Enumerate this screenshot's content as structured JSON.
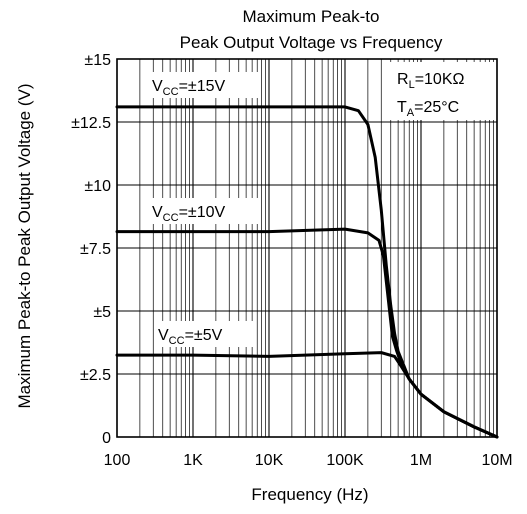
{
  "chart_data": {
    "type": "line",
    "title_lines": [
      "Maximum Peak-to",
      "Peak Output Voltage vs Frequency"
    ],
    "xlabel": "Frequency (Hz)",
    "ylabel": "Maximum Peak-to Peak Output Voltage (V)",
    "x_scale": "log",
    "xlim": [
      100,
      10000000
    ],
    "ylim": [
      0,
      15
    ],
    "x_ticks": [
      {
        "value": 100,
        "label": "100"
      },
      {
        "value": 1000,
        "label": "1K"
      },
      {
        "value": 10000,
        "label": "10K"
      },
      {
        "value": 100000,
        "label": "100K"
      },
      {
        "value": 1000000,
        "label": "1M"
      },
      {
        "value": 10000000,
        "label": "10M"
      }
    ],
    "y_ticks": [
      {
        "value": 0,
        "label": "0"
      },
      {
        "value": 2.5,
        "label": "±2.5"
      },
      {
        "value": 5,
        "label": "±5"
      },
      {
        "value": 7.5,
        "label": "±7.5"
      },
      {
        "value": 10,
        "label": "±10"
      },
      {
        "value": 12.5,
        "label": "±12.5"
      },
      {
        "value": 15,
        "label": "±15"
      }
    ],
    "grid": true,
    "annotation": {
      "lines": [
        {
          "main": "R",
          "sub": "L",
          "rest": "=10KΩ"
        },
        {
          "main": "T",
          "sub": "A",
          "rest": "=25°C"
        }
      ],
      "position": "top-right"
    },
    "series": [
      {
        "name_main": "V",
        "name_sub": "CC",
        "name_rest": "=±15V",
        "points": [
          [
            100,
            13.1
          ],
          [
            1000,
            13.1
          ],
          [
            10000,
            13.1
          ],
          [
            100000,
            13.1
          ],
          [
            150000,
            12.95
          ],
          [
            200000,
            12.4
          ],
          [
            250000,
            11.1
          ],
          [
            300000,
            9.0
          ],
          [
            350000,
            6.8
          ],
          [
            400000,
            5.2
          ],
          [
            450000,
            4.1
          ],
          [
            500000,
            3.4
          ],
          [
            700000,
            2.3
          ],
          [
            1000000,
            1.7
          ],
          [
            2000000,
            1.0
          ],
          [
            5000000,
            0.4
          ],
          [
            10000000,
            0
          ]
        ]
      },
      {
        "name_main": "V",
        "name_sub": "CC",
        "name_rest": "=±10V",
        "points": [
          [
            100,
            8.15
          ],
          [
            1000,
            8.15
          ],
          [
            10000,
            8.15
          ],
          [
            100000,
            8.25
          ],
          [
            200000,
            8.1
          ],
          [
            280000,
            7.8
          ],
          [
            320000,
            7.2
          ],
          [
            370000,
            5.5
          ],
          [
            420000,
            4.0
          ],
          [
            480000,
            3.4
          ],
          [
            550000,
            2.9
          ],
          [
            700000,
            2.3
          ],
          [
            1000000,
            1.7
          ],
          [
            2000000,
            1.0
          ],
          [
            5000000,
            0.4
          ],
          [
            10000000,
            0
          ]
        ]
      },
      {
        "name_main": "V",
        "name_sub": "CC",
        "name_rest": "=±5V",
        "points": [
          [
            100,
            3.25
          ],
          [
            1000,
            3.25
          ],
          [
            10000,
            3.2
          ],
          [
            100000,
            3.3
          ],
          [
            300000,
            3.35
          ],
          [
            450000,
            3.2
          ],
          [
            550000,
            2.8
          ],
          [
            700000,
            2.3
          ],
          [
            1000000,
            1.7
          ],
          [
            2000000,
            1.0
          ],
          [
            5000000,
            0.4
          ],
          [
            10000000,
            0
          ]
        ]
      }
    ]
  }
}
